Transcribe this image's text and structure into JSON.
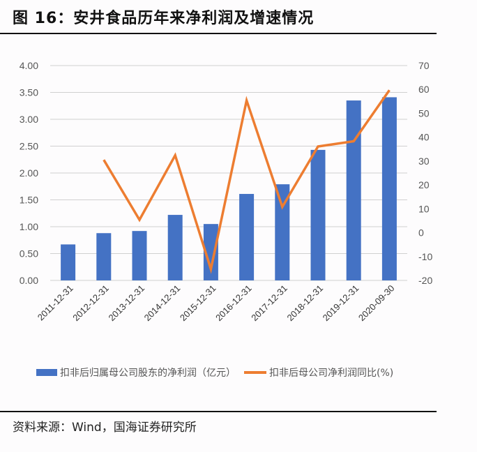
{
  "figure": {
    "title": "图 16：安井食品历年来净利润及增速情况",
    "source": "资料来源：Wind，国海证券研究所"
  },
  "colors": {
    "bar": "#4472C4",
    "line": "#ED7D31",
    "grid": "#d0d0d0",
    "rule": "#111111"
  },
  "legend": {
    "bar_label": "扣非后归属母公司股东的净利润（亿元）",
    "line_label": "扣非后母公司净利润同比(%)"
  },
  "chart_data": {
    "type": "bar+line",
    "title": "安井食品历年来净利润及增速情况",
    "categories": [
      "2011-12-31",
      "2012-12-31",
      "2013-12-31",
      "2014-12-31",
      "2015-12-31",
      "2016-12-31",
      "2017-12-31",
      "2018-12-31",
      "2019-12-31",
      "2020-09-30"
    ],
    "series": [
      {
        "name": "扣非后归属母公司股东的净利润（亿元）",
        "type": "bar",
        "axis": "left",
        "values": [
          0.67,
          0.88,
          0.92,
          1.22,
          1.05,
          1.61,
          1.79,
          2.43,
          3.35,
          3.41
        ]
      },
      {
        "name": "扣非后母公司净利润同比(%)",
        "type": "line",
        "axis": "right",
        "values": [
          null,
          30.5,
          5.4,
          32.4,
          -15.3,
          55.4,
          10.8,
          36.1,
          38.3,
          59.7
        ]
      }
    ],
    "left_axis": {
      "ylim": [
        0,
        4
      ],
      "ticks": [
        "0.00",
        "0.50",
        "1.00",
        "1.50",
        "2.00",
        "2.50",
        "3.00",
        "3.50",
        "4.00"
      ]
    },
    "right_axis": {
      "ylim": [
        -20,
        70
      ],
      "ticks": [
        "-20",
        "-10",
        "0",
        "10",
        "20",
        "30",
        "40",
        "50",
        "60",
        "70"
      ]
    },
    "xlabel": "",
    "ylabel": "",
    "grid": true,
    "legend_position": "bottom"
  }
}
